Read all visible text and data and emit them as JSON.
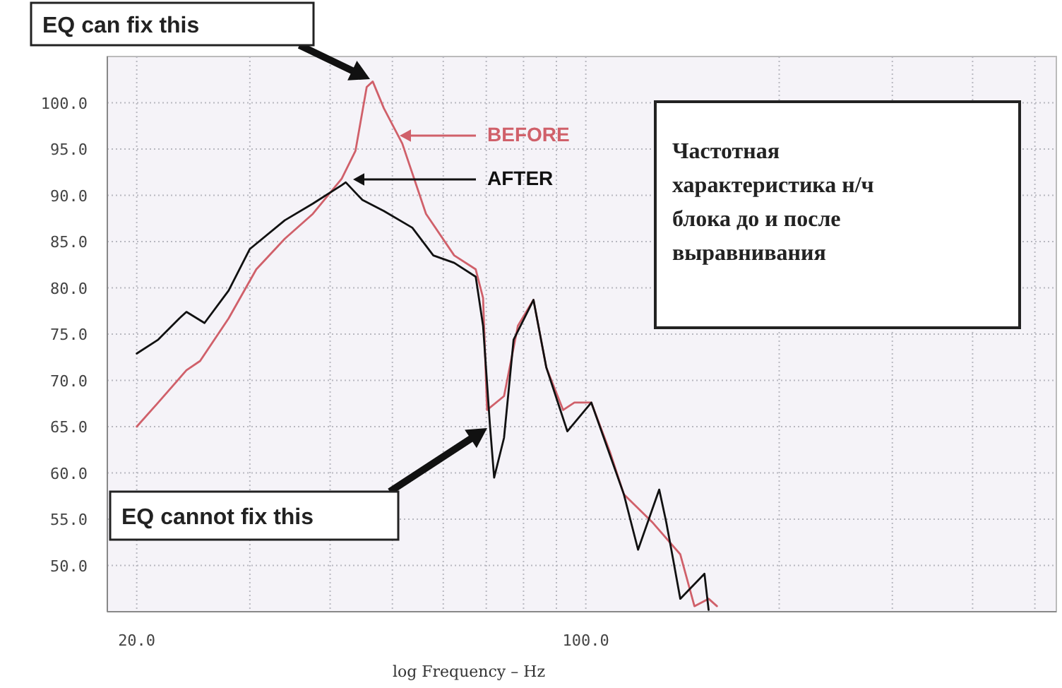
{
  "chart_data": {
    "type": "line",
    "xlabel": "log Frequency – Hz",
    "log": "x",
    "grid": true,
    "line_style": "solid",
    "marker": "none",
    "xlim": [
      18,
      540
    ],
    "ylim": [
      45,
      105
    ],
    "xticks": [
      {
        "value": 20,
        "label": "20.0"
      },
      {
        "value": 30,
        "label": null
      },
      {
        "value": 40,
        "label": null
      },
      {
        "value": 50,
        "label": null
      },
      {
        "value": 60,
        "label": null
      },
      {
        "value": 70,
        "label": null
      },
      {
        "value": 80,
        "label": null
      },
      {
        "value": 90,
        "label": null
      },
      {
        "value": 100,
        "label": "100.0"
      },
      {
        "value": 200,
        "label": null
      },
      {
        "value": 300,
        "label": null
      },
      {
        "value": 400,
        "label": null
      },
      {
        "value": 500,
        "label": null
      }
    ],
    "yticks": [
      {
        "value": 50,
        "label": "50.0"
      },
      {
        "value": 55,
        "label": "55.0"
      },
      {
        "value": 60,
        "label": "60.0"
      },
      {
        "value": 65,
        "label": "65.0"
      },
      {
        "value": 70,
        "label": "70.0"
      },
      {
        "value": 75,
        "label": "75.0"
      },
      {
        "value": 80,
        "label": "80.0"
      },
      {
        "value": 85,
        "label": "85.0"
      },
      {
        "value": 90,
        "label": "90.0"
      },
      {
        "value": 95,
        "label": "95.0"
      },
      {
        "value": 100,
        "label": "100.0"
      }
    ],
    "series": [
      {
        "name": "BEFORE",
        "color": "#d0606a",
        "x": [
          20,
          21.6,
          23.9,
          25.1,
          27.8,
          30.7,
          34.0,
          37.6,
          41.7,
          43.8,
          45.6,
          46.6,
          48.5,
          51.8,
          56.4,
          62.4,
          67.4,
          69.2,
          70.2,
          74.6,
          78.4,
          82.9,
          86.8,
          92.2,
          96.0,
          102,
          109,
          114.6,
          126.8,
          140.3,
          147.6,
          155.3,
          160
        ],
        "values": [
          65.0,
          67.6,
          71.1,
          72.1,
          76.7,
          82.0,
          85.3,
          88.0,
          91.8,
          94.8,
          101.7,
          102.3,
          99.4,
          95.6,
          88.0,
          83.5,
          82.0,
          78.9,
          66.8,
          68.3,
          75.9,
          78.7,
          71.4,
          66.8,
          67.6,
          67.6,
          62.3,
          57.7,
          54.7,
          51.2,
          45.6,
          46.4,
          45.6
        ]
      },
      {
        "name": "AFTER",
        "color": "#111111",
        "x": [
          20,
          21.6,
          23.3,
          23.9,
          25.5,
          27.8,
          30.0,
          34.0,
          37.6,
          41.7,
          42.3,
          44.9,
          48.5,
          53.7,
          57.9,
          62.4,
          67.4,
          69.2,
          70.9,
          72.0,
          74.6,
          77.2,
          82.9,
          86.8,
          93.6,
          102,
          114.6,
          120.6,
          130.1,
          133.4,
          136.8,
          140.3,
          153.0,
          155.3
        ],
        "values": [
          72.9,
          74.4,
          76.7,
          77.4,
          76.2,
          79.7,
          84.2,
          87.3,
          89.1,
          91.1,
          91.4,
          89.5,
          88.3,
          86.5,
          83.5,
          82.7,
          81.2,
          75.9,
          65.3,
          59.5,
          63.8,
          74.4,
          78.7,
          71.4,
          64.5,
          67.6,
          57.7,
          51.7,
          58.2,
          54.7,
          50.6,
          46.4,
          49.1,
          45.2
        ]
      }
    ],
    "annotations": [
      "EQ can fix this",
      "EQ cannot fix this",
      "Частотная характеристика н/ч блока до и после выравнивания"
    ]
  }
}
